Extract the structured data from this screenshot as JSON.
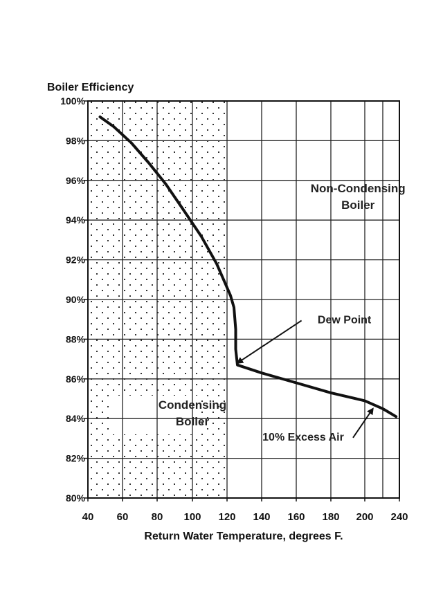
{
  "chart_data": {
    "type": "line",
    "ylabel": "Boiler Efficiency",
    "xlabel": "Return Water Temperature, degrees F.",
    "xlim": [
      40,
      240
    ],
    "ylim": [
      80,
      100
    ],
    "x_ticks": [
      40,
      60,
      80,
      100,
      120,
      140,
      160,
      180,
      200,
      240
    ],
    "x_tick_labels": [
      "40",
      "60",
      "80",
      "100",
      "120",
      "140",
      "160",
      "180",
      "200",
      "240"
    ],
    "y_ticks": [
      80,
      82,
      84,
      86,
      88,
      90,
      92,
      94,
      96,
      98,
      100
    ],
    "y_tick_labels": [
      "80%",
      "82%",
      "84%",
      "86%",
      "88%",
      "90%",
      "92%",
      "94%",
      "96%",
      "98%",
      "100%"
    ],
    "grid": true,
    "series": [
      {
        "x": [
          47,
          55,
          65,
          75,
          85,
          95,
          105,
          114,
          119,
          122,
          124,
          125,
          125,
          126,
          140,
          160,
          180,
          200,
          220,
          236
        ],
        "y": [
          99.2,
          98.7,
          97.9,
          96.9,
          95.8,
          94.5,
          93.2,
          91.8,
          90.8,
          90.2,
          89.6,
          88.5,
          87.5,
          86.7,
          86.3,
          85.8,
          85.3,
          84.9,
          84.5,
          84.1
        ]
      }
    ],
    "regions": [
      {
        "label_lines": [
          "Condensing",
          "Boiler"
        ],
        "x_from": 40,
        "x_to": 120,
        "label_x": 100,
        "label_y": 84.5
      },
      {
        "label_lines": [
          "Non-Condensing",
          "Boiler"
        ],
        "label_x": 196,
        "label_y": 95.4
      }
    ],
    "annotations": [
      {
        "text": "Dew Point",
        "text_x": 188,
        "text_y": 88.8,
        "arrow_to_x": 126,
        "arrow_to_y": 86.8
      },
      {
        "text": "10% Excess Air",
        "text_x": 164,
        "text_y": 82.9,
        "arrow_to_x": 209,
        "arrow_to_y": 84.5
      }
    ]
  }
}
